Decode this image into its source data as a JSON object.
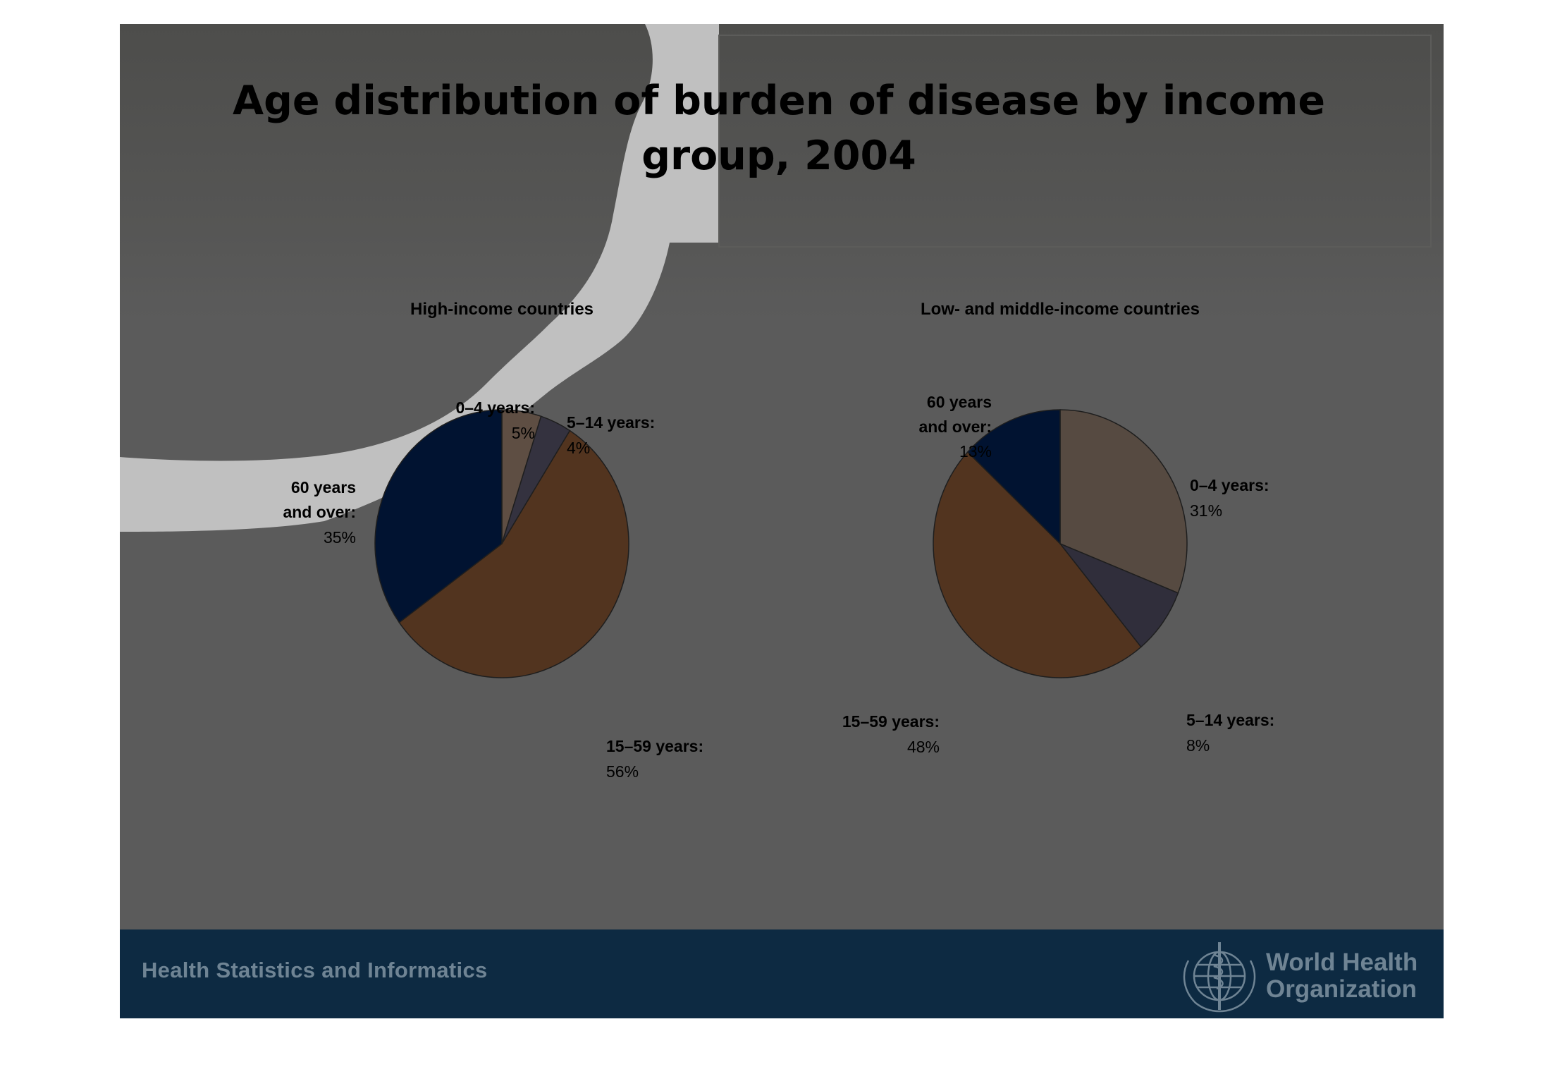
{
  "slide": {
    "title_line1": "Age distribution of burden of disease by income",
    "title_line2": "group, 2004"
  },
  "chart_data": [
    {
      "type": "pie",
      "title": "High-income countries",
      "slices": [
        {
          "label_line1": "0–4 years:",
          "label_line2": "",
          "pct": "5%",
          "value": 5,
          "color": "#5e4e43"
        },
        {
          "label_line1": "5–14 years:",
          "label_line2": "",
          "pct": "4%",
          "value": 4,
          "color": "#34323f"
        },
        {
          "label_line1": "15–59 years:",
          "label_line2": "",
          "pct": "56%",
          "value": 56,
          "color": "#52341f"
        },
        {
          "label_line1": "60 years",
          "label_line2": "and over:",
          "pct": "35%",
          "value": 35,
          "color": "#011331"
        }
      ]
    },
    {
      "type": "pie",
      "title": "Low- and middle-income countries",
      "slices": [
        {
          "label_line1": "0–4 years:",
          "label_line2": "",
          "pct": "31%",
          "value": 31,
          "color": "#564a41"
        },
        {
          "label_line1": "5–14 years:",
          "label_line2": "",
          "pct": "8%",
          "value": 8,
          "color": "#302e3b"
        },
        {
          "label_line1": "15–59 years:",
          "label_line2": "",
          "pct": "48%",
          "value": 48,
          "color": "#52341f"
        },
        {
          "label_line1": "60 years",
          "label_line2": "and over:",
          "pct": "13%",
          "value": 13,
          "color": "#011331"
        }
      ]
    }
  ],
  "footer": {
    "left_text": "Health Statistics and Informatics",
    "org_line1": "World Health",
    "org_line2": "Organization",
    "emblem_icon": "who-emblem-icon"
  }
}
